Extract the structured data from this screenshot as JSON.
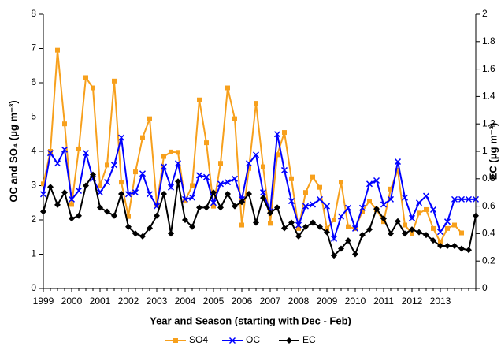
{
  "chart_data": {
    "type": "line",
    "x_label": "Year and Season (starting with Dec - Feb)",
    "y_label": "OC and SO₄ (μg m⁻³)",
    "y2_label": "EC (μg m⁻³)",
    "categories": [
      "1999",
      null,
      null,
      null,
      "2000",
      null,
      null,
      null,
      "2001",
      null,
      null,
      null,
      "2002",
      null,
      null,
      null,
      "2003",
      null,
      null,
      null,
      "2004",
      null,
      null,
      null,
      "2005",
      null,
      null,
      null,
      "2006",
      null,
      null,
      null,
      "2007",
      null,
      null,
      null,
      "2008",
      null,
      null,
      null,
      "2009",
      null,
      null,
      null,
      "2010",
      null,
      null,
      null,
      "2011",
      null,
      null,
      null,
      "2012",
      null,
      null,
      null,
      "2013",
      null,
      null,
      null,
      null,
      null
    ],
    "ylim": [
      0,
      8
    ],
    "yticks": [
      0,
      1,
      2,
      3,
      4,
      5,
      6,
      7,
      8
    ],
    "y2lim": [
      0,
      2
    ],
    "y2ticks": [
      0,
      0.2,
      0.4,
      0.6,
      0.8,
      1,
      1.2,
      1.4,
      1.6,
      1.8,
      2
    ],
    "legend": "bottom",
    "series": [
      {
        "name": "SO4",
        "color": "#f7a01c",
        "marker": "square",
        "values": [
          3.05,
          4.0,
          6.95,
          4.8,
          2.45,
          4.07,
          6.15,
          5.85,
          3.0,
          3.6,
          6.05,
          3.1,
          2.1,
          3.4,
          4.4,
          4.95,
          2.45,
          3.85,
          3.98,
          3.97,
          2.55,
          3.0,
          5.5,
          4.25,
          2.4,
          3.65,
          5.85,
          4.95,
          1.85,
          3.5,
          5.4,
          3.55,
          1.9,
          3.9,
          4.55,
          3.2,
          1.75,
          2.8,
          3.25,
          2.95,
          1.75,
          2.0,
          3.1,
          1.8,
          1.75,
          2.25,
          2.55,
          2.3,
          1.95,
          2.9,
          3.45,
          1.85,
          1.6,
          2.2,
          2.3,
          1.75,
          1.35,
          1.75,
          1.85,
          1.62,
          null,
          null
        ]
      },
      {
        "name": "OC",
        "color": "#0000ff",
        "marker": "x",
        "values": [
          2.75,
          3.95,
          3.65,
          4.05,
          2.6,
          2.85,
          3.95,
          3.2,
          2.8,
          3.1,
          3.6,
          4.4,
          2.75,
          2.8,
          3.35,
          2.75,
          2.4,
          3.55,
          2.95,
          3.65,
          2.6,
          2.65,
          3.3,
          3.25,
          2.5,
          3.05,
          3.1,
          3.2,
          2.6,
          3.65,
          3.9,
          2.8,
          2.25,
          4.5,
          3.45,
          2.55,
          1.85,
          2.4,
          2.45,
          2.6,
          2.4,
          1.45,
          2.1,
          2.35,
          1.75,
          2.35,
          3.05,
          3.15,
          2.45,
          2.6,
          3.7,
          2.65,
          2.05,
          2.5,
          2.7,
          2.3,
          1.65,
          1.95,
          2.6,
          2.6,
          2.6,
          2.6
        ]
      },
      {
        "name": "EC",
        "color": "#000000",
        "marker": "diamond",
        "axis": "y2",
        "values": [
          0.56,
          0.74,
          0.61,
          0.7,
          0.51,
          0.53,
          0.75,
          0.83,
          0.59,
          0.56,
          0.53,
          0.69,
          0.45,
          0.4,
          0.38,
          0.44,
          0.53,
          0.69,
          0.4,
          0.78,
          0.5,
          0.45,
          0.59,
          0.59,
          0.7,
          0.59,
          0.69,
          0.6,
          0.63,
          0.69,
          0.48,
          0.66,
          0.55,
          0.59,
          0.44,
          0.48,
          0.38,
          0.45,
          0.48,
          0.45,
          0.41,
          0.24,
          0.29,
          0.35,
          0.25,
          0.39,
          0.43,
          0.58,
          0.51,
          0.4,
          0.49,
          0.4,
          0.43,
          0.41,
          0.39,
          0.35,
          0.31,
          0.31,
          0.31,
          0.29,
          0.28,
          0.53
        ]
      }
    ]
  }
}
